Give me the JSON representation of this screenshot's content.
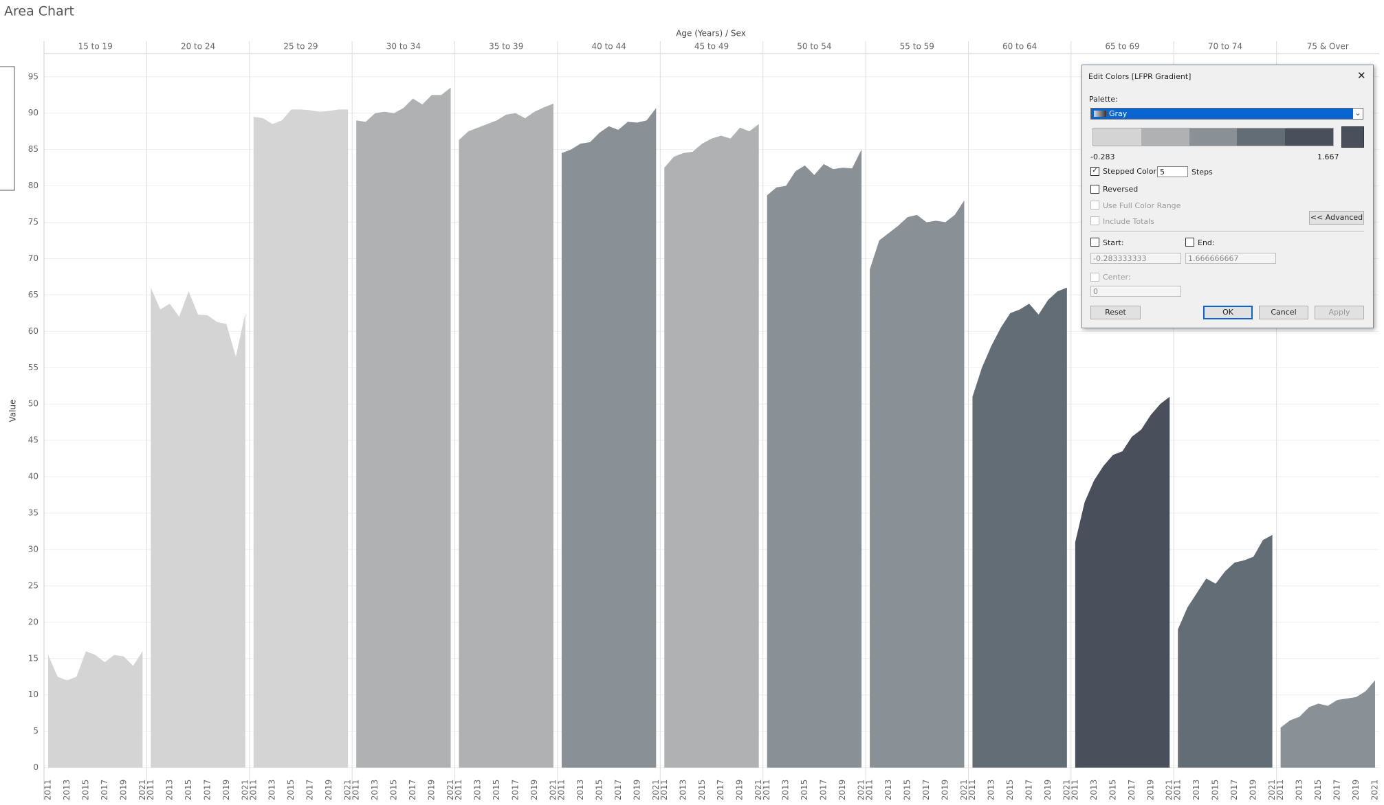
{
  "chart_data": {
    "type": "area",
    "title": "Area Chart",
    "column_header": "Age (Years) / Sex",
    "ylabel": "Value",
    "x": [
      2011,
      2012,
      2013,
      2014,
      2015,
      2016,
      2017,
      2018,
      2019,
      2020,
      2021
    ],
    "xticks": [
      2011,
      2013,
      2015,
      2017,
      2019,
      2021
    ],
    "ylim": [
      -0.7,
      98
    ],
    "yticks": [
      0,
      5,
      10,
      15,
      20,
      25,
      30,
      35,
      40,
      45,
      50,
      55,
      60,
      65,
      70,
      75,
      80,
      85,
      90,
      95
    ],
    "grid": true,
    "series": [
      {
        "name": "15 to 19",
        "color": "#d4d4d4",
        "values": [
          15.5,
          12.5,
          12,
          12.5,
          16,
          15.5,
          14.5,
          15.5,
          15.3,
          14,
          16
        ]
      },
      {
        "name": "20 to 24",
        "color": "#d4d4d4",
        "values": [
          66,
          63,
          63.8,
          62,
          65.5,
          62.3,
          62.2,
          61.3,
          61,
          56.5,
          62.5
        ]
      },
      {
        "name": "25 to 29",
        "color": "#d4d4d4",
        "values": [
          89.5,
          89.3,
          88.5,
          89,
          90.5,
          90.5,
          90.4,
          90.2,
          90.3,
          90.5,
          90.5
        ]
      },
      {
        "name": "30 to 34",
        "color": "#afb1b2",
        "values": [
          89,
          88.8,
          90,
          90.2,
          90,
          90.7,
          92,
          91.2,
          92.5,
          92.5,
          93.5
        ]
      },
      {
        "name": "35 to 39",
        "color": "#afb1b2",
        "values": [
          86.3,
          87.5,
          88,
          88.5,
          89,
          89.8,
          90,
          89.3,
          90.2,
          90.8,
          91.3
        ]
      },
      {
        "name": "40 to 44",
        "color": "#899096",
        "values": [
          84.5,
          85,
          85.8,
          86,
          87.3,
          88.2,
          87.7,
          88.8,
          88.7,
          89,
          90.7
        ]
      },
      {
        "name": "45 to 49",
        "color": "#afb1b2",
        "values": [
          82.5,
          84,
          84.5,
          84.7,
          85.8,
          86.5,
          86.9,
          86.5,
          88,
          87.5,
          88.5
        ]
      },
      {
        "name": "50 to 54",
        "color": "#899096",
        "values": [
          78.7,
          79.8,
          80,
          82,
          82.8,
          81.5,
          83,
          82.3,
          82.5,
          82.4,
          85
        ]
      },
      {
        "name": "55 to 59",
        "color": "#899096",
        "values": [
          68.5,
          72.5,
          73.5,
          74.5,
          75.7,
          76,
          75,
          75.2,
          75,
          76,
          78
        ]
      },
      {
        "name": "60 to 64",
        "color": "#636d76",
        "values": [
          51,
          55,
          58,
          60.5,
          62.5,
          63,
          63.8,
          62.3,
          64.3,
          65.5,
          66
        ]
      },
      {
        "name": "65 to 69",
        "color": "#4a4f5c",
        "values": [
          31,
          36.5,
          39.5,
          41.5,
          43,
          43.5,
          45.5,
          46.5,
          48.5,
          50,
          51
        ]
      },
      {
        "name": "70 to 74",
        "color": "#636d76",
        "values": [
          19,
          22,
          24,
          26,
          25.3,
          27,
          28.2,
          28.5,
          29,
          31.3,
          32
        ]
      },
      {
        "name": "75 & Over",
        "color": "#899096",
        "values": [
          5.5,
          6.5,
          7,
          8.3,
          8.8,
          8.5,
          9.3,
          9.5,
          9.7,
          10.5,
          12
        ]
      }
    ]
  },
  "dialog": {
    "title": "Edit Colors [LFPR Gradient]",
    "palette_label": "Palette:",
    "palette": "Gray",
    "palette_colors": [
      "#d4d4d4",
      "#afb1b2",
      "#899096",
      "#636d76",
      "#4a4f5c"
    ],
    "min_label": "-0.283",
    "max_label": "1.667",
    "stepped_color": "Stepped Color",
    "steps_value": "5",
    "steps": "Steps",
    "reversed": "Reversed",
    "full_range": "Use Full Color Range",
    "include_totals": "Include Totals",
    "advanced": "<< Advanced",
    "start": "Start:",
    "end": "End:",
    "start_value": "-0.283333333",
    "end_value": "1.666666667",
    "center": "Center:",
    "center_value": "0",
    "reset": "Reset",
    "ok": "OK",
    "cancel": "Cancel",
    "apply": "Apply"
  }
}
